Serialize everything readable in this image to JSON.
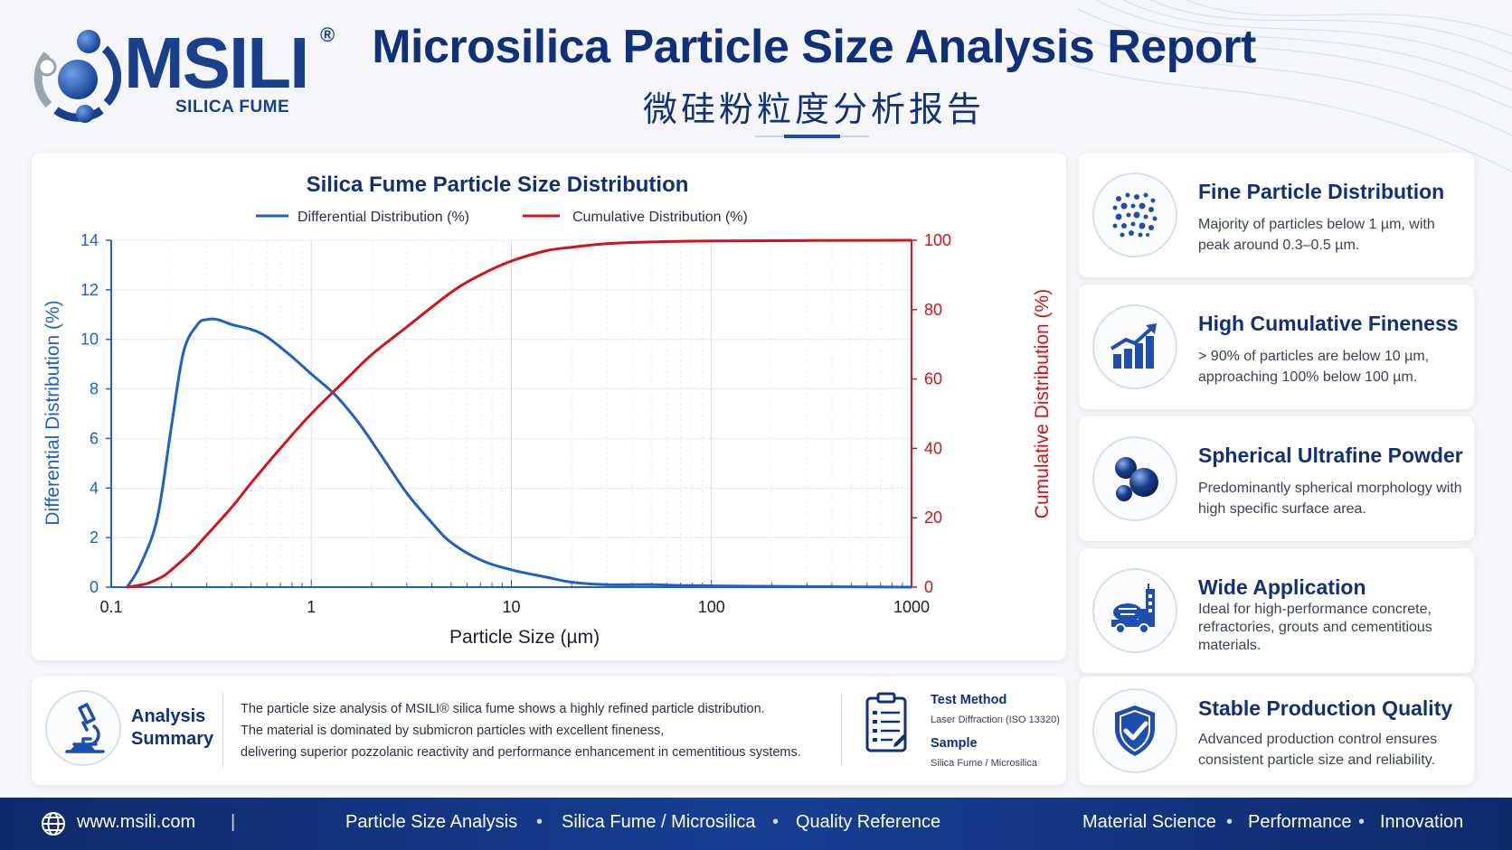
{
  "brand": {
    "name": "MSILI",
    "reg": "®",
    "subtitle": "SILICA FUME"
  },
  "header": {
    "title_en": "Microsilica Particle Size Analysis Report",
    "title_zh": "微硅粉粒度分析报告"
  },
  "colors": {
    "navy": "#12307a",
    "blue_series": "#1f5fc8",
    "red_series": "#d0141c",
    "footer": "#173f94"
  },
  "chart_data": {
    "type": "line",
    "title": "Silica Fume Particle Size Distribution",
    "xlabel": "Particle Size (µm)",
    "ylabel": "Differential Distribution (%)",
    "y2label": "Cumulative Distribution (%)",
    "xscale": "log",
    "xlim": [
      0.1,
      1000
    ],
    "ylim": [
      0,
      14
    ],
    "y2lim": [
      0,
      100
    ],
    "xticks": [
      "0.1",
      "1",
      "10",
      "100",
      "1000"
    ],
    "yticks": [
      "0",
      "2",
      "4",
      "6",
      "8",
      "10",
      "12",
      "14"
    ],
    "y2ticks": [
      "0",
      "20",
      "40",
      "60",
      "80",
      "100"
    ],
    "grid": true,
    "legend_position": "top-center",
    "series": [
      {
        "name": "Differential Distribution (%)",
        "axis": "left",
        "color": "#1f5fc8",
        "x": [
          0.12,
          0.14,
          0.17,
          0.2,
          0.23,
          0.27,
          0.3,
          0.34,
          0.4,
          0.5,
          0.6,
          0.8,
          1.0,
          1.3,
          1.7,
          2.2,
          3,
          4,
          5,
          7,
          10,
          15,
          20,
          30,
          50,
          100,
          1000
        ],
        "y": [
          0,
          0.9,
          2.8,
          6.5,
          9.5,
          10.6,
          10.8,
          10.8,
          10.6,
          10.4,
          10.1,
          9.3,
          8.6,
          7.8,
          6.7,
          5.4,
          3.8,
          2.6,
          1.8,
          1.1,
          0.7,
          0.4,
          0.2,
          0.1,
          0.1,
          0.05,
          0
        ]
      },
      {
        "name": "Cumulative Distribution (%)",
        "axis": "right",
        "color": "#d0141c",
        "x": [
          0.12,
          0.15,
          0.18,
          0.2,
          0.25,
          0.3,
          0.4,
          0.5,
          0.7,
          1.0,
          1.5,
          2,
          3,
          5,
          7,
          10,
          15,
          20,
          30,
          50,
          100,
          1000
        ],
        "y": [
          0,
          1,
          3,
          5,
          10,
          15,
          23,
          30,
          40,
          50,
          60,
          67,
          75,
          85,
          90,
          94,
          97,
          98,
          99,
          99.5,
          99.8,
          100
        ]
      }
    ]
  },
  "features": [
    {
      "icon": "particles-icon",
      "title": "Fine Particle Distribution",
      "desc": "Majority of particles below 1 µm, with peak around 0.3–0.5 µm."
    },
    {
      "icon": "bar-growth-icon",
      "title": "High Cumulative Fineness",
      "desc": "> 90% of particles are below 10 µm, approaching 100% below 100 µm."
    },
    {
      "icon": "spheres-icon",
      "title": "Spherical Ultrafine Powder",
      "desc": "Predominantly spherical morphology with high specific surface area."
    },
    {
      "icon": "mixer-truck-icon",
      "title": "Wide Application",
      "desc": "Ideal for high-performance concrete, refractories, grouts and cementitious materials."
    },
    {
      "icon": "shield-check-icon",
      "title": "Stable Production Quality",
      "desc": "Advanced production control ensures consistent particle size and reliability."
    }
  ],
  "summary": {
    "title_line1": "Analysis",
    "title_line2": "Summary",
    "line1": "The particle size analysis of MSILI® silica fume shows a highly refined particle distribution.",
    "line2": "The material is dominated by submicron particles with excellent fineness,",
    "line3": "delivering superior pozzolanic reactivity and performance enhancement in cementitious systems.",
    "test_method_label": "Test Method",
    "test_method_value": "Laser Diffraction (ISO 13320)",
    "sample_label": "Sample",
    "sample_value": "Silica Fume / Microsilica"
  },
  "footer": {
    "website": "www.msili.com",
    "divider": "|",
    "items_left": [
      "Particle Size Analysis",
      "Silica Fume / Microsilica",
      "Quality Reference"
    ],
    "items_right": [
      "Material Science",
      "Performance",
      "Innovation"
    ],
    "bullet": "•"
  }
}
